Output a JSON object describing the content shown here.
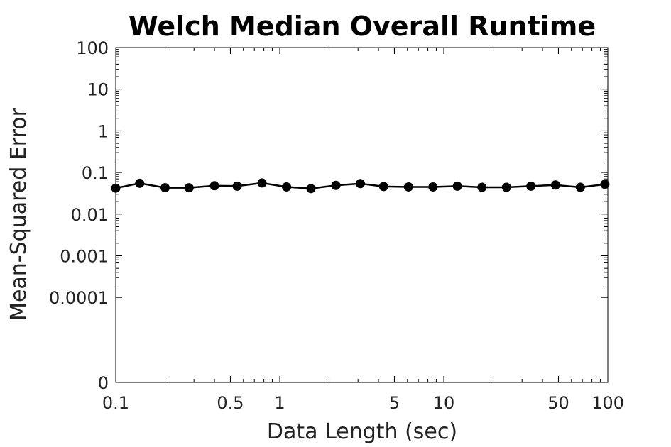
{
  "chart_data": {
    "type": "line",
    "title": "Welch Median Overall Runtime",
    "xlabel": "Data Length (sec)",
    "ylabel": "Mean-Squared Error",
    "xscale": "log",
    "yscale": "log",
    "xlim": [
      0.1,
      100
    ],
    "ylim_labels": [
      "100",
      "10",
      "1",
      "0.1",
      "0.01",
      "0.001",
      "0.0001",
      "0"
    ],
    "x_ticks": [
      0.1,
      0.5,
      1,
      5,
      10,
      50,
      100
    ],
    "x_tick_labels": [
      "0.1",
      "0.5",
      "1",
      "5",
      "10",
      "50",
      "100"
    ],
    "y_ticks": [
      100,
      10,
      1,
      0.1,
      0.01,
      0.001,
      0.0001,
      0
    ],
    "y_tick_labels": [
      "100",
      "10",
      "1",
      "0.1",
      "0.01",
      "0.001",
      "0.0001",
      "0"
    ],
    "grid": false,
    "legend": "none",
    "series": [
      {
        "color": "#000000",
        "marker": "circle",
        "x": [
          0.1,
          0.14,
          0.2,
          0.28,
          0.4,
          0.55,
          0.78,
          1.1,
          1.55,
          2.2,
          3.1,
          4.3,
          6.1,
          8.6,
          12.1,
          17.1,
          24.1,
          34,
          48,
          68,
          96
        ],
        "y": [
          0.042,
          0.055,
          0.043,
          0.043,
          0.048,
          0.047,
          0.056,
          0.045,
          0.041,
          0.049,
          0.054,
          0.046,
          0.045,
          0.045,
          0.047,
          0.044,
          0.044,
          0.047,
          0.05,
          0.044,
          0.052
        ]
      }
    ]
  }
}
